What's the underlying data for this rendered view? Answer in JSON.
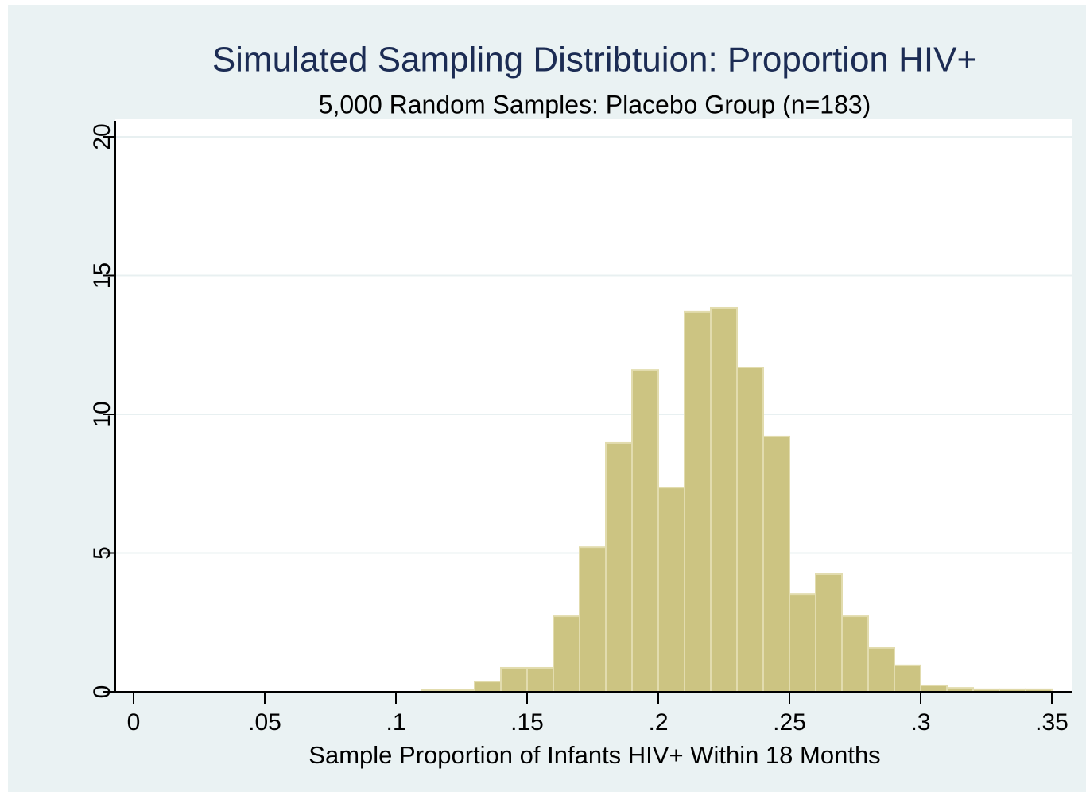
{
  "chart_data": {
    "type": "histogram",
    "title": "Simulated Sampling Distribtuion: Proportion HIV+",
    "subtitle": "5,000 Random Samples: Placebo Group (n=183)",
    "x_label": "Sample Proportion of Infants HIV+ Within 18 Months",
    "bins": [
      0.11,
      0.12,
      0.13,
      0.14,
      0.15,
      0.16,
      0.17,
      0.18,
      0.19,
      0.2,
      0.21,
      0.22,
      0.23,
      0.24,
      0.25,
      0.26,
      0.27,
      0.28,
      0.29,
      0.3,
      0.31,
      0.32,
      0.33,
      0.34,
      0.35
    ],
    "values": [
      0.06,
      0.06,
      0.37,
      0.86,
      0.86,
      2.72,
      5.21,
      8.97,
      11.6,
      7.36,
      13.7,
      13.84,
      11.69,
      9.2,
      3.52,
      4.24,
      2.72,
      1.58,
      0.95,
      0.23,
      0.14,
      0.09,
      0.09,
      0.09
    ],
    "color": "#ccc482",
    "xlim": [
      0,
      0.35
    ],
    "xticks": [
      0,
      {
        "value": 0.05,
        "label": ".05"
      },
      {
        "value": 0.1,
        "label": ".1"
      },
      {
        "value": 0.15,
        "label": ".15"
      },
      {
        "value": 0.2,
        "label": ".2"
      },
      {
        "value": 0.25,
        "label": ".25"
      },
      {
        "value": 0.3,
        "label": ".3"
      },
      {
        "value": 0.35,
        "label": ".35"
      }
    ],
    "ylim": [
      0,
      20
    ],
    "yticks": [
      0,
      5,
      10,
      15,
      20
    ],
    "grid": true
  }
}
